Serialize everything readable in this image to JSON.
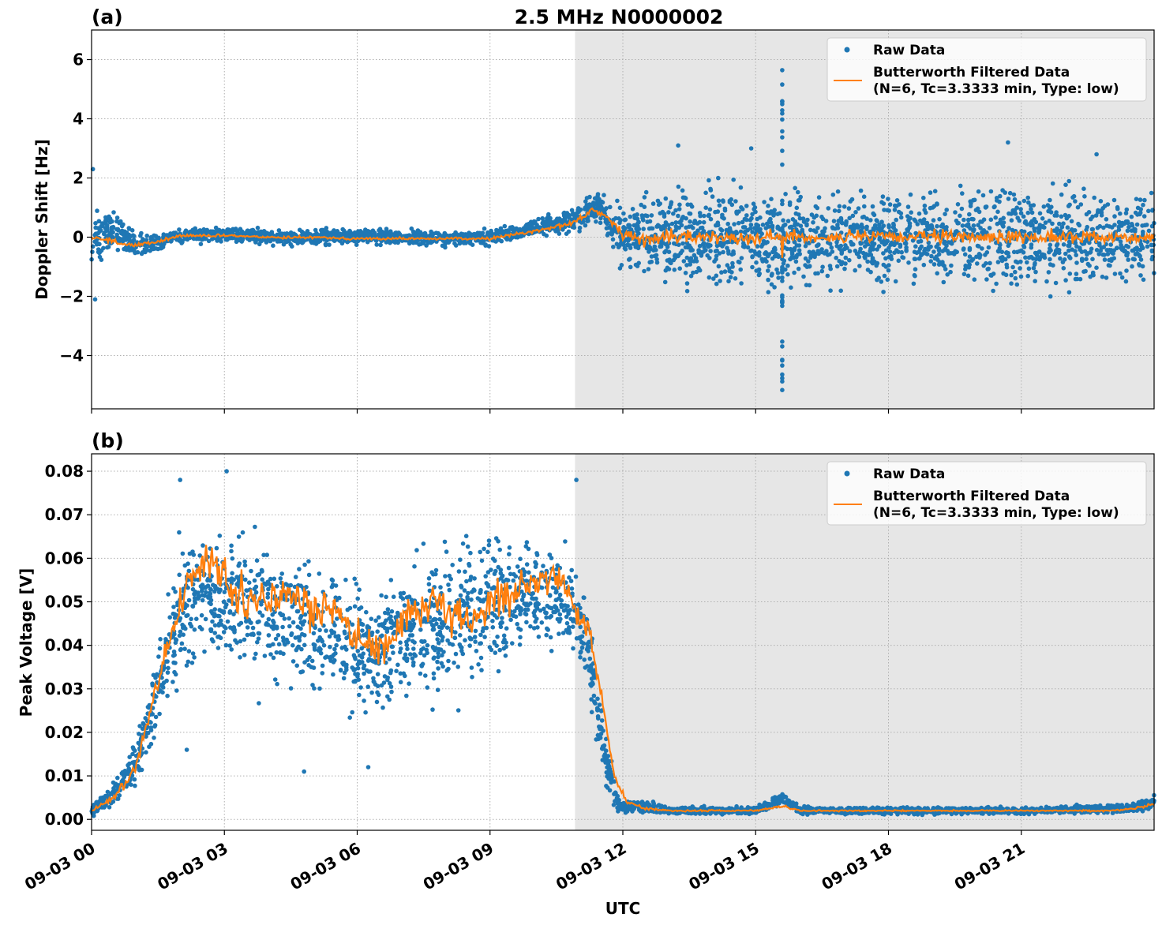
{
  "figure": {
    "title": "2.5 MHz N0000002",
    "xlabel": "UTC"
  },
  "colors": {
    "raw": "#1f77b4",
    "filtered": "#ff7f0e",
    "shade": "#e6e6e6"
  },
  "legend": {
    "raw_label": "Raw Data",
    "filtered_line1": "Butterworth Filtered Data",
    "filtered_line2": "(N=6, Tc=3.3333 min, Type: low)"
  },
  "chart_data": [
    {
      "type": "scatter",
      "panel": "(a)",
      "title": "2.5 MHz N0000002",
      "xlabel": "",
      "ylabel": "Doppler Shift [Hz]",
      "xlim_hours": [
        0,
        24
      ],
      "ylim": [
        -5.8,
        7.0
      ],
      "xticks": [
        {
          "h": 0,
          "label": "09-03 00"
        },
        {
          "h": 3,
          "label": "09-03 03"
        },
        {
          "h": 6,
          "label": "09-03 06"
        },
        {
          "h": 9,
          "label": "09-03 09"
        },
        {
          "h": 12,
          "label": "09-03 12"
        },
        {
          "h": 15,
          "label": "09-03 15"
        },
        {
          "h": 18,
          "label": "09-03 18"
        },
        {
          "h": 21,
          "label": "09-03 21"
        }
      ],
      "yticks": [
        {
          "v": -4,
          "label": "−4"
        },
        {
          "v": -2,
          "label": "−2"
        },
        {
          "v": 0,
          "label": "0"
        },
        {
          "v": 2,
          "label": "2"
        },
        {
          "v": 4,
          "label": "4"
        },
        {
          "v": 6,
          "label": "6"
        }
      ],
      "shaded_region_hours": [
        10.92,
        24
      ],
      "grid": true,
      "legend_position": "top-right",
      "series": [
        {
          "name": "Raw Data",
          "kind": "points",
          "envelope": {
            "x": [
              0,
              0.5,
              1,
              1.5,
              2,
              3,
              4,
              5,
              6,
              7,
              8,
              9,
              10,
              10.9,
              11.5,
              12,
              12.5,
              13,
              15,
              18,
              21,
              24
            ],
            "center": [
              -0.2,
              0.3,
              -0.3,
              -0.2,
              0.05,
              0.1,
              0.0,
              0.0,
              0.05,
              0.0,
              -0.05,
              0.0,
              0.3,
              0.6,
              1.0,
              0.0,
              0.0,
              0.0,
              0.0,
              0.0,
              0.0,
              0.0
            ],
            "halfwidth": [
              1.3,
              0.8,
              0.5,
              0.4,
              0.3,
              0.3,
              0.3,
              0.3,
              0.3,
              0.3,
              0.3,
              0.3,
              0.4,
              0.5,
              0.6,
              1.4,
              1.8,
              2.0,
              2.0,
              2.0,
              2.0,
              2.0
            ]
          },
          "spike": {
            "h": 15.6,
            "y_min": -5.3,
            "y_max": 6.5
          },
          "outliers": [
            {
              "h": 0.03,
              "y": 2.3
            },
            {
              "h": 0.08,
              "y": -2.1
            },
            {
              "h": 13.25,
              "y": 3.1
            },
            {
              "h": 14.9,
              "y": 3.0
            },
            {
              "h": 20.7,
              "y": 3.2
            },
            {
              "h": 22.7,
              "y": 2.8
            }
          ]
        },
        {
          "name": "Butterworth Filtered Data (N=6, Tc=3.3333 min, Type: low)",
          "kind": "line",
          "x": [
            0,
            0.5,
            1,
            1.5,
            2,
            3,
            4,
            5,
            6,
            7,
            8,
            9,
            10,
            10.9,
            11.3,
            11.6,
            12,
            12.5,
            13,
            14,
            15,
            15.6,
            16,
            17,
            18,
            19,
            20,
            21,
            22,
            23,
            24
          ],
          "y": [
            0.0,
            -0.15,
            -0.3,
            -0.15,
            0.05,
            0.05,
            0.0,
            0.0,
            -0.05,
            -0.05,
            -0.05,
            -0.05,
            0.2,
            0.5,
            0.9,
            0.75,
            0.1,
            -0.1,
            0.0,
            0.0,
            0.0,
            0.0,
            0.0,
            0.0,
            0.0,
            0.0,
            0.0,
            0.0,
            0.0,
            0.0,
            0.0
          ],
          "noise_amp": [
            0.05,
            0.1,
            0.1,
            0.08,
            0.06,
            0.05,
            0.05,
            0.05,
            0.05,
            0.05,
            0.05,
            0.05,
            0.08,
            0.1,
            0.12,
            0.12,
            0.2,
            0.25,
            0.25,
            0.25,
            0.25,
            0.25,
            0.25,
            0.25,
            0.25,
            0.25,
            0.25,
            0.25,
            0.25,
            0.25,
            0.25
          ],
          "spike": {
            "h": 15.6,
            "y_min": -0.7,
            "y_max": 1.4
          }
        }
      ]
    },
    {
      "type": "scatter",
      "panel": "(b)",
      "title": "",
      "xlabel": "UTC",
      "ylabel": "Peak Voltage [V]",
      "xlim_hours": [
        0,
        24
      ],
      "ylim": [
        -0.0025,
        0.084
      ],
      "xticks": [
        {
          "h": 0,
          "label": "09-03 00"
        },
        {
          "h": 3,
          "label": "09-03 03"
        },
        {
          "h": 6,
          "label": "09-03 06"
        },
        {
          "h": 9,
          "label": "09-03 09"
        },
        {
          "h": 12,
          "label": "09-03 12"
        },
        {
          "h": 15,
          "label": "09-03 15"
        },
        {
          "h": 18,
          "label": "09-03 18"
        },
        {
          "h": 21,
          "label": "09-03 21"
        }
      ],
      "yticks": [
        {
          "v": 0.0,
          "label": "0.00"
        },
        {
          "v": 0.01,
          "label": "0.01"
        },
        {
          "v": 0.02,
          "label": "0.02"
        },
        {
          "v": 0.03,
          "label": "0.03"
        },
        {
          "v": 0.04,
          "label": "0.04"
        },
        {
          "v": 0.05,
          "label": "0.05"
        },
        {
          "v": 0.06,
          "label": "0.06"
        },
        {
          "v": 0.07,
          "label": "0.07"
        },
        {
          "v": 0.08,
          "label": "0.08"
        }
      ],
      "shaded_region_hours": [
        10.92,
        24
      ],
      "grid": true,
      "legend_position": "top-right",
      "series": [
        {
          "name": "Raw Data",
          "kind": "points",
          "envelope": {
            "x": [
              0,
              0.5,
              1,
              1.5,
              2,
              2.5,
              3,
              4,
              5,
              6,
              6.5,
              7,
              8,
              9,
              10,
              10.8,
              11.2,
              11.5,
              11.8,
              12,
              12.5,
              13,
              15,
              15.6,
              16,
              18,
              21,
              23.5,
              24
            ],
            "center": [
              0.002,
              0.006,
              0.013,
              0.03,
              0.048,
              0.052,
              0.05,
              0.048,
              0.045,
              0.04,
              0.038,
              0.042,
              0.045,
              0.05,
              0.052,
              0.05,
              0.04,
              0.02,
              0.006,
              0.003,
              0.003,
              0.002,
              0.002,
              0.005,
              0.002,
              0.002,
              0.002,
              0.0025,
              0.004
            ],
            "halfwidth": [
              0.0015,
              0.004,
              0.006,
              0.012,
              0.018,
              0.02,
              0.02,
              0.02,
              0.02,
              0.02,
              0.02,
              0.02,
              0.02,
              0.02,
              0.015,
              0.015,
              0.012,
              0.01,
              0.004,
              0.002,
              0.002,
              0.001,
              0.001,
              0.0015,
              0.001,
              0.001,
              0.001,
              0.0012,
              0.002
            ]
          },
          "outliers": [
            {
              "h": 3.05,
              "y": 0.08
            },
            {
              "h": 2.0,
              "y": 0.078
            },
            {
              "h": 10.95,
              "y": 0.078
            },
            {
              "h": 2.15,
              "y": 0.016
            },
            {
              "h": 4.8,
              "y": 0.011
            },
            {
              "h": 6.25,
              "y": 0.012
            }
          ]
        },
        {
          "name": "Butterworth Filtered Data (N=6, Tc=3.3333 min, Type: low)",
          "kind": "line",
          "x": [
            0,
            0.5,
            1,
            1.5,
            2,
            2.5,
            3,
            3.5,
            4,
            4.5,
            5,
            5.5,
            6,
            6.3,
            6.6,
            7,
            7.5,
            8,
            8.5,
            9,
            9.5,
            10,
            10.5,
            10.9,
            11.2,
            11.5,
            11.8,
            12.1,
            12.5,
            13,
            14,
            15,
            15.6,
            16,
            18,
            21,
            23,
            23.5,
            24
          ],
          "y": [
            0.002,
            0.005,
            0.012,
            0.032,
            0.05,
            0.06,
            0.055,
            0.05,
            0.05,
            0.052,
            0.048,
            0.05,
            0.042,
            0.04,
            0.038,
            0.045,
            0.048,
            0.048,
            0.045,
            0.05,
            0.052,
            0.055,
            0.055,
            0.05,
            0.045,
            0.03,
            0.01,
            0.004,
            0.0025,
            0.002,
            0.002,
            0.002,
            0.003,
            0.002,
            0.002,
            0.002,
            0.002,
            0.0025,
            0.0035
          ],
          "noise_amp": [
            0.0003,
            0.0008,
            0.0015,
            0.003,
            0.004,
            0.005,
            0.005,
            0.005,
            0.005,
            0.005,
            0.005,
            0.005,
            0.005,
            0.005,
            0.005,
            0.005,
            0.005,
            0.005,
            0.005,
            0.005,
            0.005,
            0.004,
            0.004,
            0.004,
            0.003,
            0.002,
            0.001,
            0.0006,
            0.0004,
            0.0002,
            0.0002,
            0.0002,
            0.0004,
            0.0002,
            0.0002,
            0.0002,
            0.0002,
            0.0003,
            0.0005
          ]
        }
      ]
    }
  ]
}
